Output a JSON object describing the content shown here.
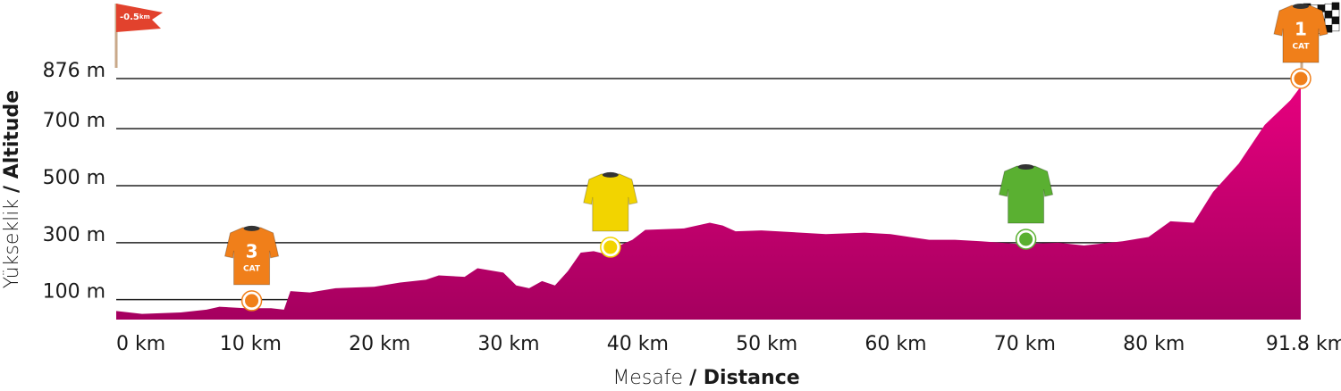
{
  "chart_data": {
    "type": "area",
    "x_label": {
      "light": "Mesafe",
      "bold": "/ Distance"
    },
    "y_label": {
      "light": "Yükseklik",
      "bold": "/ Altitude"
    },
    "x": [
      0,
      2,
      5,
      7,
      8,
      10,
      12,
      13,
      13.5,
      15,
      17,
      20,
      22,
      24,
      25,
      27,
      28,
      30,
      31,
      32,
      33,
      34,
      35,
      36,
      37,
      38,
      39,
      40,
      41,
      44,
      46,
      47,
      48,
      50,
      55,
      58,
      60,
      63,
      65,
      67,
      70,
      73,
      75,
      78,
      80,
      81.7,
      83.5,
      85,
      87,
      89,
      91,
      91.8
    ],
    "values": [
      60,
      50,
      55,
      65,
      75,
      70,
      70,
      65,
      130,
      125,
      140,
      145,
      160,
      170,
      185,
      180,
      210,
      195,
      150,
      140,
      165,
      150,
      200,
      265,
      270,
      259,
      290,
      310,
      345,
      350,
      370,
      360,
      340,
      343,
      330,
      335,
      330,
      310,
      310,
      305,
      295,
      300,
      290,
      305,
      320,
      375,
      370,
      478,
      578,
      713,
      800,
      848
    ],
    "color_top": "#e6007e",
    "color_bottom": "#a5005f",
    "xlim": [
      0,
      91.8
    ],
    "xticks": [
      {
        "value": 0,
        "label": "0 km"
      },
      {
        "value": 10,
        "label": "10 km"
      },
      {
        "value": 20,
        "label": "20 km"
      },
      {
        "value": 30,
        "label": "30 km"
      },
      {
        "value": 40,
        "label": "40 km"
      },
      {
        "value": 50,
        "label": "50 km"
      },
      {
        "value": 60,
        "label": "60 km"
      },
      {
        "value": 70,
        "label": "70 km"
      },
      {
        "value": 80,
        "label": "80 km"
      },
      {
        "value": 91.8,
        "label": "91.8 km"
      }
    ],
    "ylim": [
      30,
      876
    ],
    "yticks": [
      {
        "value": 100,
        "label": "100 m"
      },
      {
        "value": 300,
        "label": "300 m"
      },
      {
        "value": 500,
        "label": "500 m"
      },
      {
        "value": 700,
        "label": "700 m"
      },
      {
        "value": 876,
        "label": "876 m"
      }
    ],
    "grid": true,
    "start_flag": {
      "value": "-0.5",
      "unit": "km"
    },
    "markers": [
      {
        "x": 10.5,
        "y": 96,
        "color": "#f07f1a",
        "label": "3",
        "sublabel": "CAT"
      },
      {
        "x": 38.3,
        "y": 284,
        "color": "#f2d400"
      },
      {
        "x": 70.5,
        "y": 312,
        "color": "#5ab031"
      },
      {
        "x": 91.8,
        "y": 876,
        "color": "#f07f1a",
        "label": "1",
        "sublabel": "CAT"
      }
    ]
  }
}
